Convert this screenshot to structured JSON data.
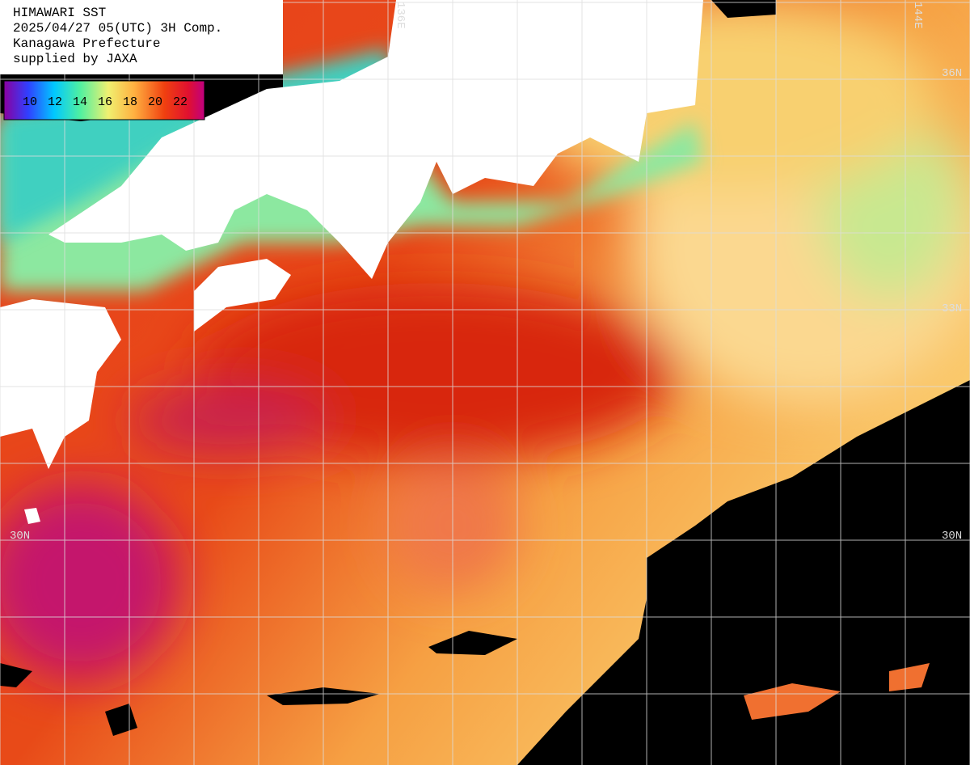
{
  "header": {
    "lines": [
      "HIMAWARI SST",
      "2025/04/27 05(UTC) 3H Comp.",
      "Kanagawa Prefecture",
      "supplied by JAXA"
    ]
  },
  "colorbar": {
    "labels": [
      10,
      12,
      14,
      16,
      18,
      20,
      22
    ]
  },
  "grid_labels": [
    "136E",
    "144E",
    "36N",
    "33N",
    "30N",
    "30N"
  ]
}
